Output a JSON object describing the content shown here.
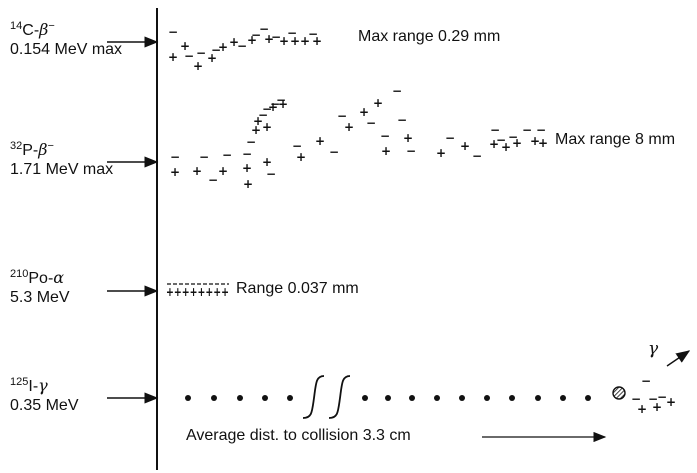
{
  "sources": [
    {
      "id": "c14",
      "nuclide_mass": "14",
      "nuclide_sym": "C",
      "particle": "β",
      "charge": "−",
      "energy": "0.154 MeV max",
      "range": "Max range 0.29 mm"
    },
    {
      "id": "p32",
      "nuclide_mass": "32",
      "nuclide_sym": "P",
      "particle": "β",
      "charge": "−",
      "energy": "1.71 MeV max",
      "range": "Max range 8 mm"
    },
    {
      "id": "po210",
      "nuclide_mass": "210",
      "nuclide_sym": "Po",
      "particle": "α",
      "charge": "",
      "energy": "5.3 MeV",
      "range": "Range 0.037 mm"
    },
    {
      "id": "i125",
      "nuclide_mass": "125",
      "nuclide_sym": "I",
      "particle": "γ",
      "charge": "",
      "energy": "0.35 MeV",
      "range": ""
    }
  ],
  "gamma_label": "γ",
  "collision_note": "Average dist. to collision 3.3 cm"
}
